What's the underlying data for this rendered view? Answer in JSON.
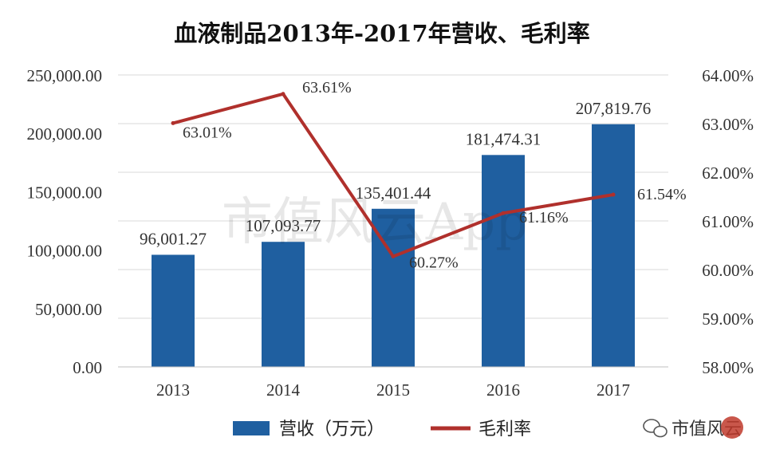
{
  "chart_data": {
    "type": "bar",
    "title": "血液制品2013年-2017年营收、毛利率",
    "categories": [
      "2013",
      "2014",
      "2015",
      "2016",
      "2017"
    ],
    "series": [
      {
        "name": "营收（万元）",
        "type": "bar",
        "axis": "left",
        "values": [
          96001.27,
          107093.77,
          135401.44,
          181474.31,
          207819.76
        ],
        "labels": [
          "96,001.27",
          "107,093.77",
          "135,401.44",
          "181,474.31",
          "207,819.76"
        ]
      },
      {
        "name": "毛利率",
        "type": "line",
        "axis": "right",
        "values": [
          63.01,
          63.61,
          60.27,
          61.16,
          61.54
        ],
        "labels": [
          "63.01%",
          "63.61%",
          "60.27%",
          "61.16%",
          "61.54%"
        ]
      }
    ],
    "left_axis": {
      "range": [
        0,
        250000
      ],
      "ticks": [
        0,
        50000,
        100000,
        150000,
        200000,
        250000
      ],
      "tick_labels": [
        "0.00",
        "50,000.00",
        "100,000.00",
        "150,000.00",
        "200,000.00",
        "250,000.00"
      ]
    },
    "right_axis": {
      "range": [
        58,
        64
      ],
      "ticks": [
        58,
        59,
        60,
        61,
        62,
        63,
        64
      ],
      "tick_labels": [
        "58.00%",
        "59.00%",
        "60.00%",
        "61.00%",
        "62.00%",
        "63.00%",
        "64.00%"
      ]
    },
    "grid": true,
    "legend_position": "bottom",
    "colors": {
      "bar": "#1f5fa0",
      "line": "#b0302c",
      "grid": "#d9d9d9",
      "text": "#333333"
    }
  },
  "watermark": {
    "text": "市值风云App",
    "corner_brand": "市值风云",
    "corner_icon": "wechat-icon"
  }
}
